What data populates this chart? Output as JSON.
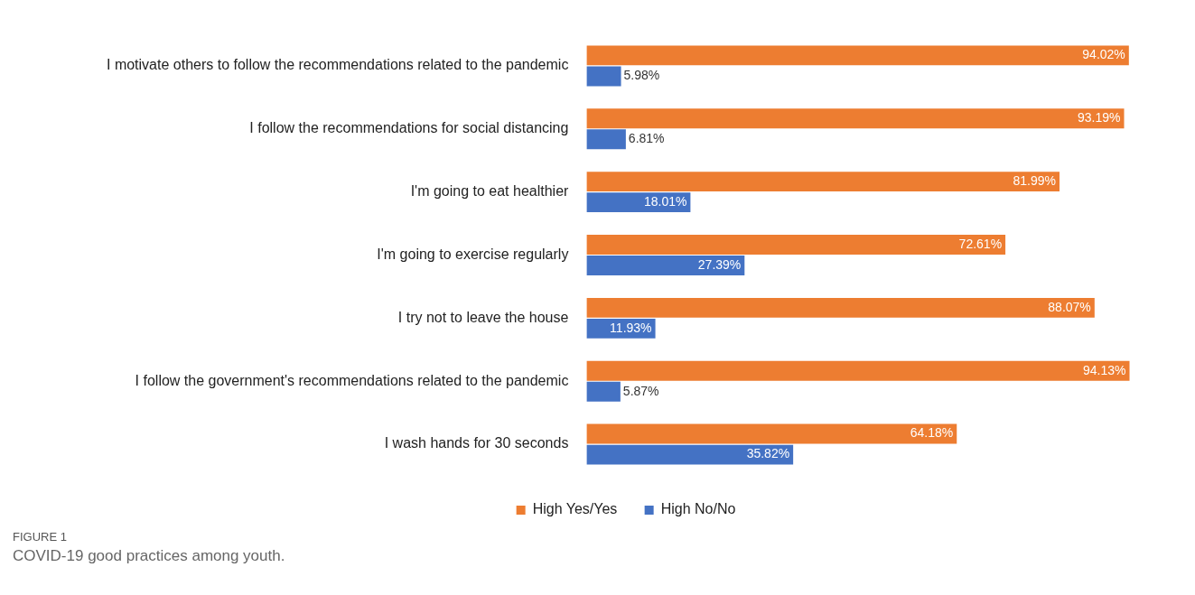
{
  "chart_data": {
    "type": "bar",
    "orientation": "horizontal",
    "categories": [
      "I motivate others to follow the recommendations related to the pandemic",
      "I follow the recommendations for social distancing",
      "I'm going to eat healthier",
      "I'm going to exercise regularly",
      "I try not to leave the house",
      "I follow the government's recommendations related to the pandemic",
      "I wash hands for 30 seconds"
    ],
    "series": [
      {
        "name": "High Yes/Yes",
        "color": "#ed7d31",
        "values": [
          94.02,
          93.19,
          81.99,
          72.61,
          88.07,
          94.13,
          64.18
        ],
        "value_labels": [
          "94.02%",
          "93.19%",
          "81.99%",
          "72.61%",
          "88.07%",
          "94.13%",
          "64.18%"
        ]
      },
      {
        "name": "High No/No",
        "color": "#4472c4",
        "values": [
          5.98,
          6.81,
          18.01,
          27.39,
          11.93,
          5.87,
          35.82
        ],
        "value_labels": [
          "5.98%",
          "6.81%",
          "18.01%",
          "27.39%",
          "11.93%",
          "5.87%",
          "35.82%"
        ]
      }
    ],
    "legend": "bottom",
    "tick_labels": "y",
    "annotations": [
      "FIGURE 1",
      "COVID-19 good practices among youth."
    ]
  }
}
